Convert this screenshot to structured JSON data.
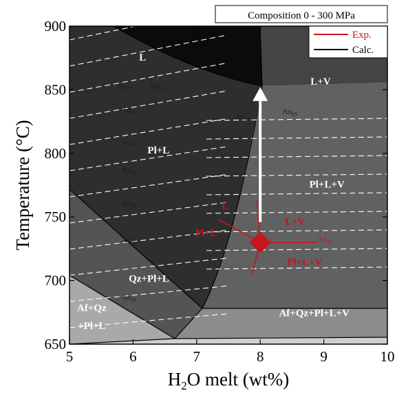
{
  "chart_data": {
    "type": "phase-diagram",
    "title": "Composition 0 - 300 MPa",
    "xlabel": "H2O melt (wt%)",
    "ylabel": "Temperature (°C)",
    "xlim": [
      5,
      10
    ],
    "ylim": [
      650,
      900
    ],
    "x_ticks": [
      "5",
      "6",
      "7",
      "8",
      "9",
      "10"
    ],
    "y_ticks": [
      "650",
      "700",
      "750",
      "800",
      "850",
      "900"
    ],
    "legend": {
      "position": "top-right",
      "items": [
        {
          "label": "Exp.",
          "color": "#c8141e"
        },
        {
          "label": "Calc.",
          "color": "#000000"
        }
      ]
    },
    "fields": [
      {
        "label": "L",
        "x": 6.15,
        "y": 873,
        "color": "#ffffff"
      },
      {
        "label": "L+V",
        "x": 8.95,
        "y": 854,
        "color": "#ffffff"
      },
      {
        "label": "Pl+L",
        "x": 6.4,
        "y": 800,
        "color": "#ffffff"
      },
      {
        "label": "Pl+L+V",
        "x": 9.05,
        "y": 773,
        "color": "#ffffff"
      },
      {
        "label": "Qz+Pl+L",
        "x": 6.25,
        "y": 699,
        "color": "#ffffff"
      },
      {
        "label": "Af+Qz",
        "x": 5.35,
        "y": 676,
        "color": "#ffffff"
      },
      {
        "label": "+Pl+L",
        "x": 5.35,
        "y": 662,
        "color": "#ffffff"
      },
      {
        "label": "Af+Qz+Pl+L+V",
        "x": 8.85,
        "y": 672,
        "color": "#ffffff"
      }
    ],
    "experimental": {
      "point": {
        "x": 8.0,
        "y": 730
      },
      "labels": [
        {
          "label": "L",
          "x": 7.45,
          "y": 756
        },
        {
          "label": "Pl+L",
          "x": 7.15,
          "y": 735
        },
        {
          "label": "L+V",
          "x": 8.55,
          "y": 744
        },
        {
          "label": "Pl+L+V",
          "x": 8.7,
          "y": 712
        }
      ]
    },
    "arrow": {
      "x": 8.0,
      "from": 746,
      "to": 852
    },
    "an_labels": [
      {
        "text": "An",
        "sub": "72",
        "x": 5.75,
        "y": 851
      },
      {
        "text": "An",
        "sub": "70",
        "x": 6.25,
        "y": 851
      },
      {
        "text": "An",
        "sub": "65",
        "x": 5.82,
        "y": 832
      },
      {
        "text": "An",
        "sub": "60",
        "x": 5.82,
        "y": 807
      },
      {
        "text": "An",
        "sub": "55",
        "x": 5.82,
        "y": 785
      },
      {
        "text": "An",
        "sub": "45",
        "x": 5.82,
        "y": 759
      },
      {
        "text": "An",
        "sub": "35",
        "x": 5.82,
        "y": 730
      },
      {
        "text": "An",
        "sub": "20",
        "x": 5.82,
        "y": 685
      },
      {
        "text": "An",
        "sub": "68",
        "x": 7.6,
        "y": 827
      },
      {
        "text": "An",
        "sub": "65",
        "x": 8.35,
        "y": 831
      },
      {
        "text": "An",
        "sub": "48",
        "x": 8.9,
        "y": 731,
        "color": "#c8141e"
      }
    ]
  }
}
